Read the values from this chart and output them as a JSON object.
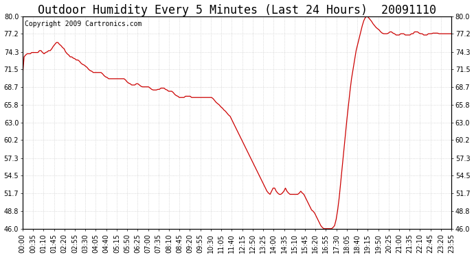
{
  "title": "Outdoor Humidity Every 5 Minutes (Last 24 Hours)  20091110",
  "copyright": "Copyright 2009 Cartronics.com",
  "line_color": "#cc0000",
  "background_color": "#ffffff",
  "grid_color": "#cccccc",
  "yticks": [
    46.0,
    48.8,
    51.7,
    54.5,
    57.3,
    60.2,
    63.0,
    65.8,
    68.7,
    71.5,
    74.3,
    77.2,
    80.0
  ],
  "ymin": 46.0,
  "ymax": 80.0,
  "humidity_values": [
    70.5,
    73.5,
    73.8,
    74.0,
    74.0,
    74.0,
    74.2,
    74.2,
    74.2,
    74.2,
    74.2,
    74.5,
    74.5,
    74.2,
    74.0,
    74.2,
    74.3,
    74.5,
    74.5,
    74.8,
    75.2,
    75.5,
    75.8,
    75.8,
    75.5,
    75.3,
    75.0,
    74.8,
    74.3,
    74.0,
    73.8,
    73.5,
    73.5,
    73.3,
    73.2,
    73.0,
    73.0,
    72.8,
    72.5,
    72.3,
    72.2,
    72.0,
    71.8,
    71.5,
    71.3,
    71.2,
    71.0,
    71.0,
    71.0,
    71.0,
    71.0,
    71.0,
    70.8,
    70.5,
    70.3,
    70.2,
    70.0,
    70.0,
    70.0,
    70.0,
    70.0,
    70.0,
    70.0,
    70.0,
    70.0,
    70.0,
    70.0,
    69.8,
    69.5,
    69.3,
    69.2,
    69.0,
    69.0,
    69.0,
    69.2,
    69.2,
    69.0,
    68.8,
    68.7,
    68.7,
    68.7,
    68.7,
    68.7,
    68.5,
    68.3,
    68.2,
    68.2,
    68.2,
    68.3,
    68.3,
    68.5,
    68.5,
    68.5,
    68.3,
    68.2,
    68.0,
    68.0,
    68.0,
    67.8,
    67.5,
    67.3,
    67.2,
    67.0,
    67.0,
    67.0,
    67.0,
    67.2,
    67.2,
    67.2,
    67.2,
    67.0,
    67.0,
    67.0,
    67.0,
    67.0,
    67.0,
    67.0,
    67.0,
    67.0,
    67.0,
    67.0,
    67.0,
    67.0,
    67.0,
    66.8,
    66.5,
    66.2,
    66.0,
    65.8,
    65.5,
    65.3,
    65.0,
    64.8,
    64.5,
    64.2,
    64.0,
    63.5,
    63.0,
    62.5,
    62.0,
    61.5,
    61.0,
    60.5,
    60.0,
    59.5,
    59.0,
    58.5,
    58.0,
    57.5,
    57.0,
    56.5,
    56.0,
    55.5,
    55.0,
    54.5,
    54.0,
    53.5,
    53.0,
    52.5,
    52.0,
    51.7,
    51.5,
    52.0,
    52.5,
    52.5,
    52.0,
    51.7,
    51.5,
    51.5,
    51.7,
    52.0,
    52.5,
    52.0,
    51.7,
    51.5,
    51.5,
    51.5,
    51.5,
    51.5,
    51.5,
    51.7,
    52.0,
    51.7,
    51.5,
    51.0,
    50.5,
    50.0,
    49.5,
    49.0,
    48.8,
    48.5,
    48.0,
    47.5,
    47.0,
    46.5,
    46.2,
    46.0,
    46.0,
    46.0,
    46.0,
    46.0,
    46.0,
    46.2,
    46.5,
    47.5,
    49.0,
    51.0,
    53.5,
    56.0,
    58.5,
    61.0,
    63.5,
    65.8,
    68.0,
    70.0,
    71.5,
    73.0,
    74.5,
    75.5,
    76.5,
    77.5,
    78.5,
    79.3,
    79.8,
    80.0,
    79.8,
    79.5,
    79.2,
    78.8,
    78.5,
    78.2,
    78.0,
    77.8,
    77.5,
    77.3,
    77.2,
    77.2,
    77.2,
    77.3,
    77.5,
    77.5,
    77.3,
    77.2,
    77.0,
    77.0,
    77.0,
    77.2,
    77.2,
    77.2,
    77.0,
    77.0,
    77.0,
    77.0,
    77.2,
    77.2,
    77.5,
    77.5,
    77.5,
    77.3,
    77.2,
    77.2,
    77.0,
    77.0,
    77.0,
    77.2,
    77.2,
    77.2,
    77.3,
    77.3,
    77.3,
    77.3,
    77.2,
    77.2,
    77.2,
    77.2,
    77.2,
    77.2,
    77.2,
    77.2,
    77.2
  ],
  "xtick_labels": [
    "00:00",
    "00:35",
    "01:10",
    "01:45",
    "02:20",
    "02:55",
    "03:30",
    "04:05",
    "04:40",
    "05:15",
    "05:50",
    "06:25",
    "07:00",
    "07:35",
    "08:10",
    "08:45",
    "09:20",
    "09:55",
    "10:30",
    "11:05",
    "11:40",
    "12:15",
    "12:50",
    "13:25",
    "14:00",
    "14:35",
    "15:10",
    "15:45",
    "16:20",
    "16:55",
    "17:30",
    "18:05",
    "18:40",
    "19:15",
    "19:50",
    "20:25",
    "21:00",
    "21:35",
    "22:10",
    "22:45",
    "23:20",
    "23:55"
  ],
  "title_fontsize": 12,
  "tick_fontsize": 7,
  "copyright_fontsize": 7
}
